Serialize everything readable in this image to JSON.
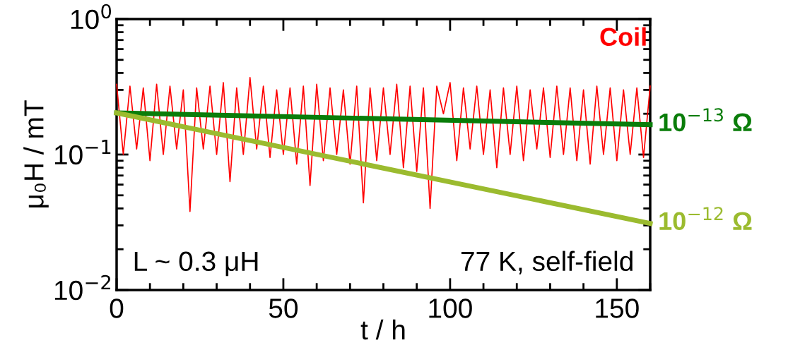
{
  "chart_data": {
    "type": "line",
    "xlabel": "t / h",
    "ylabel": "μ₀H / mT",
    "log": "y",
    "xlim": [
      0,
      160
    ],
    "xticks": [
      0,
      50,
      100,
      150
    ],
    "ylim": [
      0.01,
      1
    ],
    "yticks": [
      {
        "value": 0.01,
        "label": "10$^{−2}$"
      },
      {
        "value": 0.1,
        "label": "10$^{−1}$"
      },
      {
        "value": 1,
        "label": "10$^{0}$"
      }
    ],
    "grid": false,
    "legend": false,
    "marker": "none",
    "line_style": "solid",
    "annotations": [
      "L ~ 0.3 μH",
      "77 K, self-field"
    ],
    "series": [
      {
        "name": "Coil",
        "color": "#ff0000",
        "x": [
          0,
          2,
          4,
          6,
          8,
          10,
          12,
          14,
          16,
          18,
          20,
          22,
          24,
          26,
          28,
          30,
          32,
          34,
          36,
          38,
          40,
          42,
          44,
          46,
          48,
          50,
          52,
          54,
          56,
          58,
          60,
          62,
          64,
          66,
          68,
          70,
          72,
          74,
          76,
          78,
          80,
          82,
          84,
          86,
          88,
          90,
          92,
          94,
          96,
          98,
          100,
          102,
          104,
          106,
          108,
          110,
          112,
          114,
          116,
          118,
          120,
          122,
          124,
          126,
          128,
          130,
          132,
          134,
          136,
          138,
          140,
          142,
          144,
          146,
          148,
          150,
          152,
          154,
          156,
          158,
          160
        ],
        "values": [
          0.33,
          0.1,
          0.32,
          0.11,
          0.31,
          0.09,
          0.33,
          0.1,
          0.32,
          0.11,
          0.3,
          0.038,
          0.31,
          0.11,
          0.32,
          0.1,
          0.34,
          0.063,
          0.31,
          0.1,
          0.37,
          0.11,
          0.32,
          0.095,
          0.3,
          0.1,
          0.31,
          0.085,
          0.32,
          0.059,
          0.33,
          0.09,
          0.31,
          0.1,
          0.3,
          0.085,
          0.32,
          0.044,
          0.31,
          0.09,
          0.31,
          0.1,
          0.33,
          0.08,
          0.32,
          0.075,
          0.31,
          0.04,
          0.32,
          0.2,
          0.34,
          0.09,
          0.31,
          0.11,
          0.32,
          0.1,
          0.3,
          0.08,
          0.31,
          0.1,
          0.32,
          0.09,
          0.3,
          0.11,
          0.31,
          0.095,
          0.32,
          0.1,
          0.31,
          0.09,
          0.3,
          0.085,
          0.32,
          0.1,
          0.31,
          0.09,
          0.3,
          0.1,
          0.31,
          0.095,
          0.32
        ]
      },
      {
        "name": "10$^{−13}$ Ω",
        "color": "#0a7d0a",
        "x": [
          0,
          160
        ],
        "values": [
          0.203,
          0.166
        ]
      },
      {
        "name": "10$^{−12}$ Ω",
        "color": "#9bbb2f",
        "x": [
          0,
          160
        ],
        "values": [
          0.203,
          0.031
        ]
      }
    ]
  }
}
